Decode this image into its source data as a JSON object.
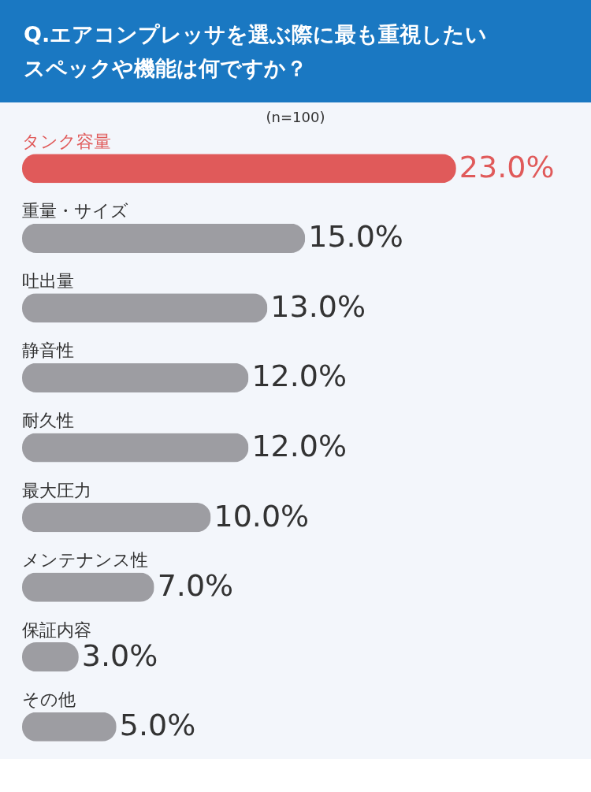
{
  "chart_data": {
    "type": "bar",
    "orientation": "horizontal",
    "title": "Q.エアコンプレッサを選ぶ際に最も重視したいスペックや機能は何ですか？",
    "subtitle": "(n=100)",
    "categories": [
      "タンク容量",
      "重量・サイズ",
      "吐出量",
      "静音性",
      "耐久性",
      "最大圧力",
      "メンテナンス性",
      "保証内容",
      "その他"
    ],
    "values": [
      23.0,
      15.0,
      13.0,
      12.0,
      12.0,
      10.0,
      7.0,
      3.0,
      5.0
    ],
    "value_labels": [
      "23.0%",
      "15.0%",
      "13.0%",
      "12.0%",
      "12.0%",
      "10.0%",
      "7.0%",
      "3.0%",
      "5.0%"
    ],
    "colors": [
      "#e05a5a",
      "#9d9da2",
      "#9d9da2",
      "#9d9da2",
      "#9d9da2",
      "#9d9da2",
      "#9d9da2",
      "#9d9da2",
      "#9d9da2"
    ]
  }
}
